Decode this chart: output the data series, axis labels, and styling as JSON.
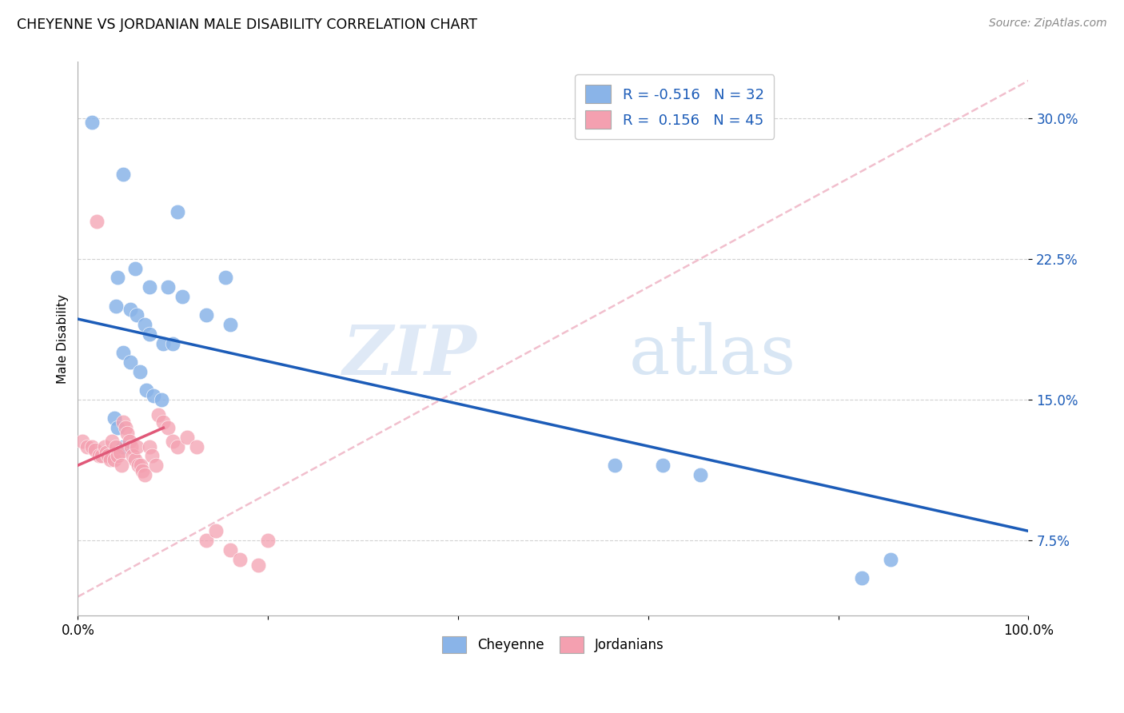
{
  "title": "CHEYENNE VS JORDANIAN MALE DISABILITY CORRELATION CHART",
  "source": "Source: ZipAtlas.com",
  "ylabel": "Male Disability",
  "yticks": [
    7.5,
    15.0,
    22.5,
    30.0
  ],
  "ytick_labels": [
    "7.5%",
    "15.0%",
    "22.5%",
    "30.0%"
  ],
  "xmin": 0.0,
  "xmax": 1.0,
  "ymin": 3.5,
  "ymax": 33.0,
  "legend_r_cheyenne": "-0.516",
  "legend_n_cheyenne": "32",
  "legend_r_jordanian": " 0.156",
  "legend_n_jordanian": "45",
  "cheyenne_color": "#8ab4e8",
  "jordanian_color": "#f4a0b0",
  "cheyenne_line_color": "#1c5cb8",
  "jordanian_line_color": "#e05878",
  "dashed_line_color": "#f0b8c8",
  "watermark_zip": "ZIP",
  "watermark_atlas": "atlas",
  "cheyenne_x": [
    0.015,
    0.048,
    0.105,
    0.155,
    0.042,
    0.06,
    0.075,
    0.095,
    0.11,
    0.135,
    0.16,
    0.04,
    0.055,
    0.062,
    0.07,
    0.075,
    0.09,
    0.1,
    0.048,
    0.055,
    0.065,
    0.072,
    0.08,
    0.088,
    0.038,
    0.042,
    0.048,
    0.565,
    0.615,
    0.655,
    0.825,
    0.855
  ],
  "cheyenne_y": [
    29.8,
    27.0,
    25.0,
    21.5,
    21.5,
    22.0,
    21.0,
    21.0,
    20.5,
    19.5,
    19.0,
    20.0,
    19.8,
    19.5,
    19.0,
    18.5,
    18.0,
    18.0,
    17.5,
    17.0,
    16.5,
    15.5,
    15.2,
    15.0,
    14.0,
    13.5,
    12.5,
    11.5,
    11.5,
    11.0,
    5.5,
    6.5
  ],
  "jordanian_x": [
    0.005,
    0.01,
    0.015,
    0.018,
    0.02,
    0.022,
    0.025,
    0.028,
    0.03,
    0.032,
    0.034,
    0.036,
    0.038,
    0.04,
    0.042,
    0.044,
    0.046,
    0.048,
    0.05,
    0.052,
    0.054,
    0.056,
    0.058,
    0.06,
    0.062,
    0.064,
    0.066,
    0.068,
    0.07,
    0.075,
    0.078,
    0.082,
    0.085,
    0.09,
    0.095,
    0.1,
    0.105,
    0.115,
    0.125,
    0.135,
    0.145,
    0.16,
    0.17,
    0.19,
    0.2
  ],
  "jordanian_y": [
    12.8,
    12.5,
    12.5,
    12.3,
    24.5,
    12.0,
    12.0,
    12.5,
    12.2,
    12.0,
    11.8,
    12.8,
    11.8,
    12.5,
    12.0,
    12.2,
    11.5,
    13.8,
    13.5,
    13.2,
    12.8,
    12.5,
    12.0,
    11.8,
    12.5,
    11.5,
    11.5,
    11.2,
    11.0,
    12.5,
    12.0,
    11.5,
    14.2,
    13.8,
    13.5,
    12.8,
    12.5,
    13.0,
    12.5,
    7.5,
    8.0,
    7.0,
    6.5,
    6.2,
    7.5
  ],
  "cheyenne_line_x0": 0.0,
  "cheyenne_line_y0": 19.3,
  "cheyenne_line_x1": 1.0,
  "cheyenne_line_y1": 8.0,
  "jordanian_line_x0": 0.0,
  "jordanian_line_y0": 11.5,
  "jordanian_line_x1": 0.09,
  "jordanian_line_y1": 13.5,
  "dashed_line_x0": 0.0,
  "dashed_line_y0": 4.5,
  "dashed_line_x1": 1.0,
  "dashed_line_y1": 32.0
}
